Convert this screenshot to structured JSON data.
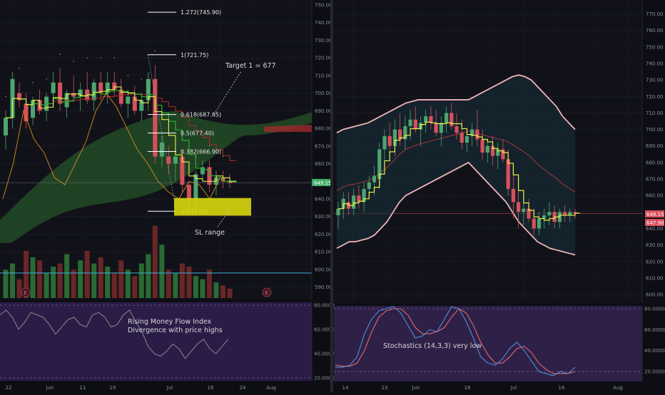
{
  "colors": {
    "bg": "#0f1016",
    "up": "#4ea46f",
    "down": "#d8505c",
    "signal": "#eaf04a",
    "cloud_green": "#2e6a2d",
    "mfi_panel": "#2e1f4b",
    "mfi_line": "#8a8a8a",
    "stoch_k": "#4d8fd6",
    "stoch_d": "#e06a6a",
    "boll": "#f1b3b8",
    "boll_mid": "#a33a3a",
    "volume_up": "#2f7a3a",
    "volume_down": "#7a2a2a"
  },
  "chart_data": [
    {
      "type": "candlestick",
      "panel": "left",
      "y_ticks": [
        "750.00",
        "740.00",
        "730.00",
        "720.00",
        "710.00",
        "700.00",
        "690.00",
        "680.00",
        "670.00",
        "660.00",
        "650.00",
        "640.00",
        "630.00",
        "620.00",
        "610.00",
        "600.00",
        "590.00"
      ],
      "ylim": [
        585,
        752
      ],
      "x_ticks": [
        "22",
        "Jun",
        "11",
        "19",
        "Jul",
        "16",
        "24",
        "Aug"
      ],
      "current_price_label": "649.15",
      "candles": [
        {
          "o": 676,
          "h": 690,
          "l": 668,
          "c": 686
        },
        {
          "o": 686,
          "h": 712,
          "l": 680,
          "c": 708
        },
        {
          "o": 700,
          "h": 706,
          "l": 692,
          "c": 696
        },
        {
          "o": 694,
          "h": 700,
          "l": 680,
          "c": 684
        },
        {
          "o": 686,
          "h": 698,
          "l": 682,
          "c": 696
        },
        {
          "o": 696,
          "h": 702,
          "l": 688,
          "c": 690
        },
        {
          "o": 690,
          "h": 700,
          "l": 684,
          "c": 698
        },
        {
          "o": 700,
          "h": 712,
          "l": 694,
          "c": 706
        },
        {
          "o": 706,
          "h": 714,
          "l": 690,
          "c": 694
        },
        {
          "o": 692,
          "h": 702,
          "l": 686,
          "c": 700
        },
        {
          "o": 700,
          "h": 710,
          "l": 696,
          "c": 698
        },
        {
          "o": 698,
          "h": 706,
          "l": 690,
          "c": 702
        },
        {
          "o": 702,
          "h": 712,
          "l": 694,
          "c": 696
        },
        {
          "o": 696,
          "h": 708,
          "l": 690,
          "c": 706
        },
        {
          "o": 706,
          "h": 712,
          "l": 696,
          "c": 700
        },
        {
          "o": 700,
          "h": 712,
          "l": 694,
          "c": 706
        },
        {
          "o": 706,
          "h": 712,
          "l": 698,
          "c": 702
        },
        {
          "o": 702,
          "h": 708,
          "l": 692,
          "c": 694
        },
        {
          "o": 694,
          "h": 702,
          "l": 686,
          "c": 698
        },
        {
          "o": 698,
          "h": 704,
          "l": 688,
          "c": 690
        },
        {
          "o": 690,
          "h": 700,
          "l": 684,
          "c": 696
        },
        {
          "o": 696,
          "h": 712,
          "l": 690,
          "c": 708
        },
        {
          "o": 708,
          "h": 716,
          "l": 660,
          "c": 664
        },
        {
          "o": 664,
          "h": 676,
          "l": 658,
          "c": 672
        },
        {
          "o": 664,
          "h": 670,
          "l": 654,
          "c": 660
        },
        {
          "o": 660,
          "h": 666,
          "l": 650,
          "c": 664
        },
        {
          "o": 664,
          "h": 668,
          "l": 644,
          "c": 648
        },
        {
          "o": 648,
          "h": 650,
          "l": 634,
          "c": 640
        },
        {
          "o": 640,
          "h": 656,
          "l": 636,
          "c": 654
        },
        {
          "o": 654,
          "h": 662,
          "l": 650,
          "c": 658
        },
        {
          "o": 658,
          "h": 662,
          "l": 644,
          "c": 648
        },
        {
          "o": 648,
          "h": 656,
          "l": 642,
          "c": 652
        },
        {
          "o": 652,
          "h": 656,
          "l": 646,
          "c": 650
        },
        {
          "o": 650,
          "h": 654,
          "l": 646,
          "c": 649
        }
      ],
      "fib_levels": [
        {
          "label": "1.272(745.90)",
          "price": 745.9
        },
        {
          "label": "1(721.75)",
          "price": 721.75
        },
        {
          "label": "0.618(687.85)",
          "price": 687.85
        },
        {
          "label": "0.5(677.40)",
          "price": 677.4
        },
        {
          "label": "0.382(666.90)",
          "price": 666.9
        },
        {
          "label": "0(633.00)",
          "price": 633.0
        }
      ],
      "annotations": {
        "target": "Target 1 = 677",
        "sl": "SL range",
        "earnings": "E"
      },
      "mfi": {
        "y_ticks": [
          "80.0000",
          "60.0000",
          "40.0000",
          "20.0000"
        ],
        "ylim": [
          15,
          85
        ],
        "text_line1": "Rising Money Flow Index",
        "text_line2": "Divergence with price highs",
        "values": [
          72,
          76,
          70,
          60,
          66,
          74,
          72,
          70,
          64,
          56,
          62,
          68,
          70,
          64,
          62,
          72,
          74,
          70,
          62,
          64,
          72,
          76,
          66,
          58,
          46,
          40,
          38,
          42,
          48,
          44,
          36,
          42,
          48,
          52,
          44,
          40,
          46,
          52
        ]
      },
      "volume": [
        18,
        22,
        12,
        30,
        26,
        24,
        16,
        20,
        22,
        28,
        18,
        24,
        30,
        22,
        26,
        20,
        16,
        24,
        18,
        14,
        22,
        28,
        46,
        34,
        18,
        16,
        22,
        20,
        14,
        12,
        18,
        10,
        8,
        6
      ]
    },
    {
      "type": "candlestick",
      "panel": "right",
      "y_ticks": [
        "770.00",
        "760.00",
        "750.00",
        "740.00",
        "730.00",
        "720.00",
        "710.00",
        "700.00",
        "690.00",
        "680.00",
        "670.00",
        "660.00",
        "650.00",
        "640.00",
        "630.00",
        "620.00",
        "610.00",
        "600.00"
      ],
      "ylim": [
        597,
        775
      ],
      "x_ticks": [
        "14",
        "23",
        "Jun",
        "18",
        "Jul",
        "16",
        "Aug"
      ],
      "current_price_label": "649.15",
      "secondary_price_label": "647.90",
      "candles": [
        {
          "o": 648,
          "h": 656,
          "l": 640,
          "c": 652
        },
        {
          "o": 652,
          "h": 662,
          "l": 646,
          "c": 658
        },
        {
          "o": 656,
          "h": 662,
          "l": 648,
          "c": 652
        },
        {
          "o": 652,
          "h": 664,
          "l": 648,
          "c": 660
        },
        {
          "o": 660,
          "h": 666,
          "l": 652,
          "c": 656
        },
        {
          "o": 656,
          "h": 668,
          "l": 650,
          "c": 664
        },
        {
          "o": 664,
          "h": 672,
          "l": 658,
          "c": 668
        },
        {
          "o": 668,
          "h": 678,
          "l": 660,
          "c": 672
        },
        {
          "o": 670,
          "h": 692,
          "l": 664,
          "c": 688
        },
        {
          "o": 688,
          "h": 700,
          "l": 680,
          "c": 696
        },
        {
          "o": 696,
          "h": 704,
          "l": 686,
          "c": 690
        },
        {
          "o": 690,
          "h": 706,
          "l": 684,
          "c": 700
        },
        {
          "o": 700,
          "h": 710,
          "l": 690,
          "c": 694
        },
        {
          "o": 694,
          "h": 708,
          "l": 688,
          "c": 702
        },
        {
          "o": 702,
          "h": 712,
          "l": 694,
          "c": 706
        },
        {
          "o": 706,
          "h": 714,
          "l": 698,
          "c": 700
        },
        {
          "o": 700,
          "h": 708,
          "l": 690,
          "c": 704
        },
        {
          "o": 704,
          "h": 712,
          "l": 698,
          "c": 708
        },
        {
          "o": 708,
          "h": 714,
          "l": 700,
          "c": 704
        },
        {
          "o": 704,
          "h": 712,
          "l": 696,
          "c": 698
        },
        {
          "o": 698,
          "h": 708,
          "l": 690,
          "c": 704
        },
        {
          "o": 704,
          "h": 714,
          "l": 698,
          "c": 710
        },
        {
          "o": 710,
          "h": 716,
          "l": 700,
          "c": 702
        },
        {
          "o": 702,
          "h": 710,
          "l": 694,
          "c": 698
        },
        {
          "o": 698,
          "h": 706,
          "l": 688,
          "c": 692
        },
        {
          "o": 692,
          "h": 700,
          "l": 686,
          "c": 696
        },
        {
          "o": 696,
          "h": 704,
          "l": 690,
          "c": 700
        },
        {
          "o": 700,
          "h": 712,
          "l": 690,
          "c": 694
        },
        {
          "o": 694,
          "h": 700,
          "l": 682,
          "c": 686
        },
        {
          "o": 686,
          "h": 694,
          "l": 680,
          "c": 690
        },
        {
          "o": 690,
          "h": 696,
          "l": 678,
          "c": 684
        },
        {
          "o": 684,
          "h": 692,
          "l": 676,
          "c": 688
        },
        {
          "o": 688,
          "h": 694,
          "l": 680,
          "c": 682
        },
        {
          "o": 682,
          "h": 688,
          "l": 660,
          "c": 664
        },
        {
          "o": 664,
          "h": 676,
          "l": 646,
          "c": 656
        },
        {
          "o": 656,
          "h": 666,
          "l": 640,
          "c": 650
        },
        {
          "o": 650,
          "h": 660,
          "l": 642,
          "c": 652
        },
        {
          "o": 652,
          "h": 658,
          "l": 644,
          "c": 646
        },
        {
          "o": 646,
          "h": 652,
          "l": 636,
          "c": 640
        },
        {
          "o": 640,
          "h": 650,
          "l": 636,
          "c": 646
        },
        {
          "o": 646,
          "h": 652,
          "l": 640,
          "c": 648
        },
        {
          "o": 648,
          "h": 656,
          "l": 642,
          "c": 650
        },
        {
          "o": 650,
          "h": 654,
          "l": 640,
          "c": 644
        },
        {
          "o": 644,
          "h": 652,
          "l": 640,
          "c": 650
        },
        {
          "o": 650,
          "h": 654,
          "l": 644,
          "c": 648
        },
        {
          "o": 648,
          "h": 652,
          "l": 644,
          "c": 650
        },
        {
          "o": 650,
          "h": 652,
          "l": 646,
          "c": 649
        }
      ],
      "boll_upper": [
        698,
        700,
        701,
        702,
        703,
        704,
        706,
        708,
        710,
        712,
        714,
        716,
        717,
        718,
        718,
        718,
        718,
        718,
        718,
        718,
        718,
        718,
        720,
        722,
        724,
        726,
        728,
        730,
        732,
        733,
        732,
        730,
        726,
        722,
        718,
        714,
        708,
        704,
        700
      ],
      "boll_lower": [
        628,
        630,
        632,
        632,
        633,
        634,
        636,
        640,
        644,
        650,
        656,
        660,
        662,
        664,
        666,
        668,
        670,
        672,
        674,
        676,
        678,
        680,
        676,
        672,
        668,
        664,
        660,
        656,
        650,
        644,
        640,
        636,
        632,
        630,
        628,
        627,
        626,
        625,
        624
      ],
      "stoch": {
        "y_ticks": [
          "80.0000",
          "60.0000",
          "40.0000",
          "20.0000"
        ],
        "ylim": [
          15,
          85
        ],
        "text": "Stochastics (14,3,3) very low",
        "k": [
          24,
          24,
          26,
          34,
          56,
          70,
          78,
          80,
          82,
          76,
          64,
          52,
          54,
          60,
          58,
          70,
          82,
          80,
          68,
          52,
          34,
          28,
          26,
          32,
          42,
          48,
          40,
          30,
          20,
          18,
          16,
          20,
          18,
          24
        ],
        "d": [
          26,
          25,
          25,
          28,
          40,
          58,
          72,
          78,
          80,
          80,
          74,
          62,
          56,
          56,
          58,
          62,
          72,
          80,
          76,
          64,
          48,
          36,
          28,
          28,
          34,
          42,
          44,
          38,
          28,
          22,
          18,
          18,
          18,
          20
        ]
      }
    }
  ]
}
